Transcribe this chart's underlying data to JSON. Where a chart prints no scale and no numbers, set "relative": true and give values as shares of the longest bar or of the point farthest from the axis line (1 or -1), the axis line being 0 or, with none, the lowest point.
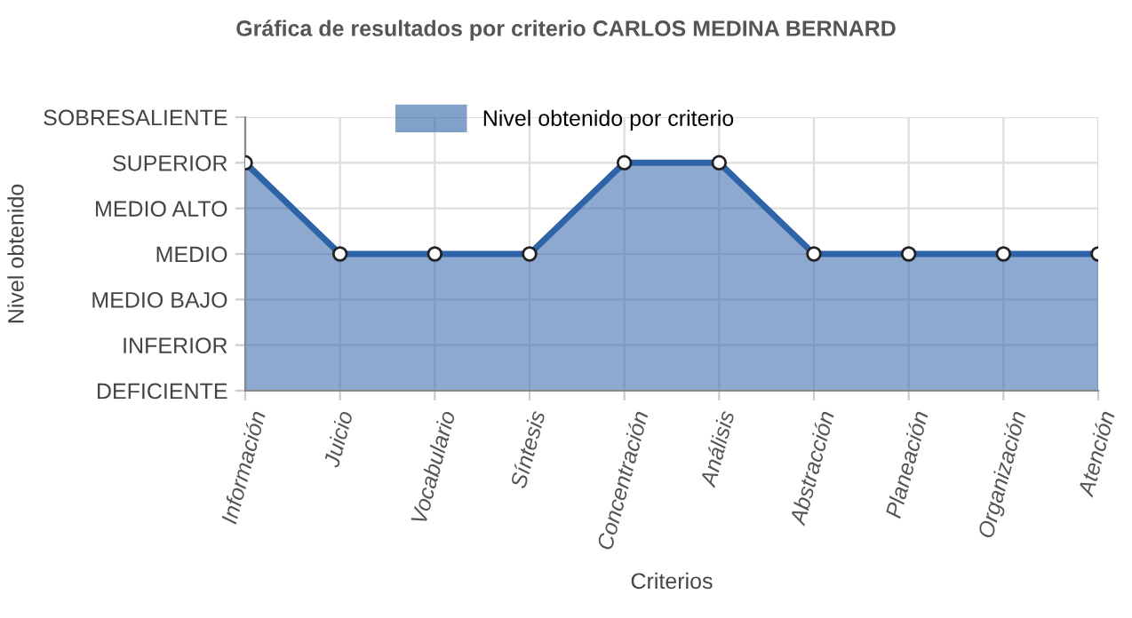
{
  "chart_data": {
    "type": "area",
    "title": "Gráfica de resultados por criterio CARLOS MEDINA BERNARD",
    "xlabel": "Criterios",
    "annotations": [
      "Nivel obtenido"
    ],
    "categories": [
      "Información",
      "Juicio",
      "Vocabulario",
      "Síntesis",
      "Concentración",
      "Análisis",
      "Abstracción",
      "Planeación",
      "Organización",
      "Atención"
    ],
    "series": [
      {
        "name": "Nivel obtenido por criterio",
        "color": "#2f63a8",
        "values": [
          1,
          0.6,
          0.6,
          0.6,
          1,
          1,
          0.6,
          0.6,
          0.6,
          0.6
        ]
      }
    ],
    "relative": true,
    "y_categories": [
      "SOBRESALIENTE",
      "SUPERIOR",
      "MEDIO ALTO",
      "MEDIO",
      "MEDIO BAJO",
      "INFERIOR",
      "DEFICIENTE"
    ],
    "grid": true,
    "legend": "top",
    "marker": "circle",
    "line_style": "solid"
  }
}
